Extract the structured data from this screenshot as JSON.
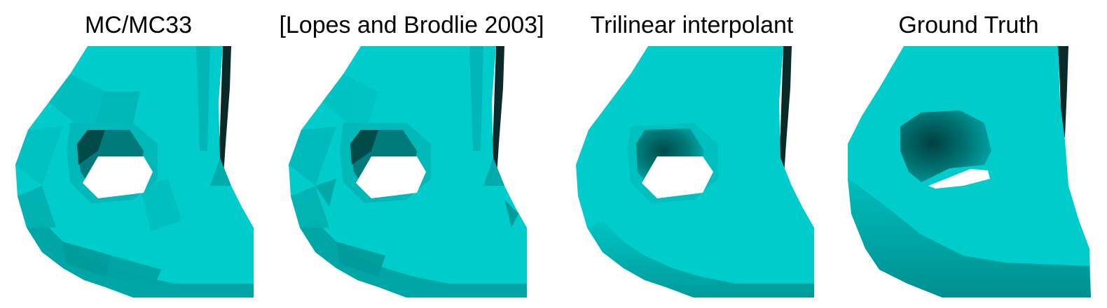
{
  "figure": {
    "panels": [
      {
        "title": "MC/MC33",
        "shading": "faceted"
      },
      {
        "title": "[Lopes and Brodlie 2003]",
        "shading": "faceted"
      },
      {
        "title": "Trilinear interpolant",
        "shading": "smooth"
      },
      {
        "title": "Ground Truth",
        "shading": "fine"
      }
    ],
    "colors": {
      "surface": "#00CCCC",
      "surface_mid": "#00B3B3",
      "surface_dark": "#008A8A",
      "surface_deep": "#004A4A",
      "edge_dark": "#0A2A2A",
      "background": "#FFFFFF"
    }
  }
}
